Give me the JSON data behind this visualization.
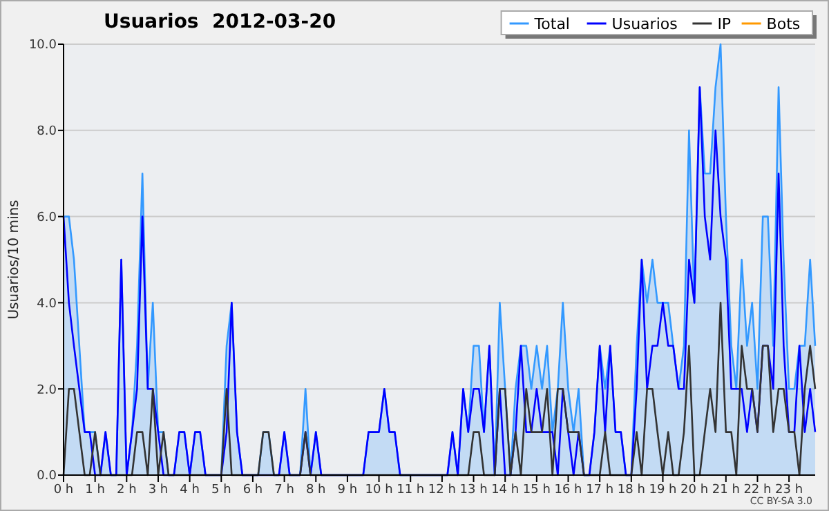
{
  "chart_data": {
    "type": "line",
    "title": "Usuarios  2012-03-20",
    "ylabel": "Usuarios/10 mins",
    "annotations": [
      "CC BY-SA 3.0"
    ],
    "x": [
      0,
      0.17,
      0.33,
      0.5,
      0.67,
      0.83,
      1,
      1.17,
      1.33,
      1.5,
      1.67,
      1.83,
      2,
      2.17,
      2.33,
      2.5,
      2.67,
      2.83,
      3,
      3.17,
      3.33,
      3.5,
      3.67,
      3.83,
      4,
      4.17,
      4.33,
      4.5,
      4.67,
      4.83,
      5,
      5.17,
      5.33,
      5.5,
      5.67,
      5.83,
      6,
      6.17,
      6.33,
      6.5,
      6.67,
      6.83,
      7,
      7.17,
      7.33,
      7.5,
      7.67,
      7.83,
      8,
      8.17,
      8.33,
      8.5,
      8.67,
      8.83,
      9,
      9.17,
      9.33,
      9.5,
      9.67,
      9.83,
      10,
      10.17,
      10.33,
      10.5,
      10.67,
      10.83,
      11,
      11.17,
      11.33,
      11.5,
      11.67,
      11.83,
      12,
      12.17,
      12.33,
      12.5,
      12.67,
      12.83,
      13,
      13.17,
      13.33,
      13.5,
      13.67,
      13.83,
      14,
      14.17,
      14.33,
      14.5,
      14.67,
      14.83,
      15,
      15.17,
      15.33,
      15.5,
      15.67,
      15.83,
      16,
      16.17,
      16.33,
      16.5,
      16.67,
      16.83,
      17,
      17.17,
      17.33,
      17.5,
      17.67,
      17.83,
      18,
      18.17,
      18.33,
      18.5,
      18.67,
      18.83,
      19,
      19.17,
      19.33,
      19.5,
      19.67,
      19.83,
      20,
      20.17,
      20.33,
      20.5,
      20.67,
      20.83,
      21,
      21.17,
      21.33,
      21.5,
      21.67,
      21.83,
      22,
      22.17,
      22.33,
      22.5,
      22.67,
      22.83,
      23,
      23.17,
      23.33,
      23.5,
      23.67,
      23.83
    ],
    "series": [
      {
        "name": "Total",
        "type": "area",
        "color": "#3399ff",
        "values": [
          6,
          6,
          5,
          3,
          1,
          1,
          1,
          0,
          1,
          0,
          0,
          5,
          0,
          1,
          3,
          7,
          2,
          4,
          1,
          1,
          0,
          0,
          1,
          1,
          0,
          1,
          1,
          0,
          0,
          0,
          0,
          3,
          4,
          1,
          0,
          0,
          0,
          0,
          1,
          1,
          0,
          0,
          1,
          0,
          0,
          0,
          2,
          0,
          1,
          0,
          0,
          0,
          0,
          0,
          0,
          0,
          0,
          0,
          1,
          1,
          1,
          2,
          1,
          1,
          0,
          0,
          0,
          0,
          0,
          0,
          0,
          0,
          0,
          0,
          1,
          0,
          2,
          1,
          3,
          3,
          1,
          3,
          0,
          4,
          2,
          0,
          2,
          3,
          3,
          2,
          3,
          2,
          3,
          1,
          2,
          4,
          2,
          1,
          2,
          0,
          0,
          1,
          3,
          2,
          3,
          1,
          1,
          0,
          0,
          3,
          5,
          4,
          5,
          4,
          4,
          4,
          3,
          2,
          3,
          8,
          4,
          9,
          7,
          7,
          9,
          10,
          6,
          3,
          2,
          5,
          3,
          4,
          2,
          6,
          6,
          3,
          9,
          5,
          2,
          2,
          3,
          3,
          5,
          3
        ]
      },
      {
        "name": "Usuarios",
        "color": "#0000ff",
        "values": [
          6,
          4,
          3,
          2,
          1,
          1,
          0,
          0,
          1,
          0,
          0,
          5,
          0,
          1,
          2,
          6,
          2,
          2,
          1,
          0,
          0,
          0,
          1,
          1,
          0,
          1,
          1,
          0,
          0,
          0,
          0,
          1,
          4,
          1,
          0,
          0,
          0,
          0,
          0,
          0,
          0,
          0,
          1,
          0,
          0,
          0,
          1,
          0,
          1,
          0,
          0,
          0,
          0,
          0,
          0,
          0,
          0,
          0,
          1,
          1,
          1,
          2,
          1,
          1,
          0,
          0,
          0,
          0,
          0,
          0,
          0,
          0,
          0,
          0,
          1,
          0,
          2,
          1,
          2,
          2,
          1,
          3,
          0,
          2,
          0,
          0,
          1,
          3,
          1,
          1,
          2,
          1,
          1,
          1,
          0,
          2,
          1,
          0,
          1,
          0,
          0,
          1,
          3,
          1,
          3,
          1,
          1,
          0,
          0,
          2,
          5,
          2,
          3,
          3,
          4,
          3,
          3,
          2,
          2,
          5,
          4,
          9,
          6,
          5,
          8,
          6,
          5,
          2,
          2,
          2,
          1,
          2,
          1,
          3,
          3,
          2,
          7,
          3,
          1,
          1,
          3,
          1,
          2,
          1
        ]
      },
      {
        "name": "IP",
        "color": "#333333",
        "values": [
          0,
          2,
          2,
          1,
          0,
          0,
          1,
          0,
          0,
          0,
          0,
          0,
          0,
          0,
          1,
          1,
          0,
          2,
          0,
          1,
          0,
          0,
          0,
          0,
          0,
          0,
          0,
          0,
          0,
          0,
          0,
          2,
          0,
          0,
          0,
          0,
          0,
          0,
          1,
          1,
          0,
          0,
          0,
          0,
          0,
          0,
          1,
          0,
          0,
          0,
          0,
          0,
          0,
          0,
          0,
          0,
          0,
          0,
          0,
          0,
          0,
          0,
          0,
          0,
          0,
          0,
          0,
          0,
          0,
          0,
          0,
          0,
          0,
          0,
          0,
          0,
          0,
          0,
          1,
          1,
          0,
          0,
          0,
          2,
          2,
          0,
          1,
          0,
          2,
          1,
          1,
          1,
          2,
          0,
          2,
          2,
          1,
          1,
          1,
          0,
          0,
          0,
          0,
          1,
          0,
          0,
          0,
          0,
          0,
          1,
          0,
          2,
          2,
          1,
          0,
          1,
          0,
          0,
          1,
          3,
          0,
          0,
          1,
          2,
          1,
          4,
          1,
          1,
          0,
          3,
          2,
          2,
          1,
          3,
          3,
          1,
          2,
          2,
          1,
          1,
          0,
          2,
          3,
          2
        ]
      },
      {
        "name": "Bots",
        "color": "#ff9900",
        "values": [
          null,
          null,
          null,
          null,
          null,
          null,
          null,
          null,
          null,
          null,
          null,
          null,
          null,
          null,
          null,
          null,
          null,
          null,
          null,
          null,
          null,
          null,
          null,
          null,
          null,
          null,
          null,
          null,
          null,
          null,
          null,
          null,
          null,
          null,
          null,
          null,
          null,
          null,
          null,
          null,
          null,
          null,
          null,
          null,
          null,
          null,
          null,
          null,
          null,
          null,
          null,
          null,
          null,
          null,
          null,
          null,
          null,
          null,
          null,
          null,
          null,
          null,
          null,
          null,
          null,
          null,
          null,
          null,
          null,
          null,
          null,
          null,
          null,
          null,
          null,
          null,
          null,
          null,
          null,
          null,
          null,
          null,
          null,
          null,
          null,
          null,
          null,
          null,
          null,
          null,
          null,
          null,
          null,
          null,
          null,
          null,
          null,
          null,
          null,
          null,
          null,
          null,
          null,
          null,
          null,
          null,
          null,
          null,
          null,
          null,
          null,
          null,
          null,
          null,
          null,
          null,
          null,
          null,
          null,
          null,
          null,
          null,
          null,
          null,
          null,
          null,
          null,
          null,
          null,
          null,
          null,
          null,
          null,
          null,
          null,
          null,
          null,
          null,
          null,
          null,
          null,
          null,
          null,
          null
        ]
      }
    ],
    "xlim": [
      0,
      23.83
    ],
    "xticks": [
      {
        "value": 0,
        "label": "0 h"
      },
      {
        "value": 1,
        "label": "1 h"
      },
      {
        "value": 2,
        "label": "2 h"
      },
      {
        "value": 3,
        "label": "3 h"
      },
      {
        "value": 4,
        "label": "4 h"
      },
      {
        "value": 5,
        "label": "5 h"
      },
      {
        "value": 6,
        "label": "6 h"
      },
      {
        "value": 7,
        "label": "7 h"
      },
      {
        "value": 8,
        "label": "8 h"
      },
      {
        "value": 9,
        "label": "9 h"
      },
      {
        "value": 10,
        "label": "10 h"
      },
      {
        "value": 11,
        "label": "11 h"
      },
      {
        "value": 12,
        "label": "12 h"
      },
      {
        "value": 13,
        "label": "13 h"
      },
      {
        "value": 14,
        "label": "14 h"
      },
      {
        "value": 15,
        "label": "15 h"
      },
      {
        "value": 16,
        "label": "16 h"
      },
      {
        "value": 17,
        "label": "17 h"
      },
      {
        "value": 18,
        "label": "18 h"
      },
      {
        "value": 19,
        "label": "19 h"
      },
      {
        "value": 20,
        "label": "20 h"
      },
      {
        "value": 21,
        "label": "21 h"
      },
      {
        "value": 22,
        "label": "22 h"
      },
      {
        "value": 23,
        "label": "23 h"
      }
    ],
    "ylim": [
      0,
      10
    ],
    "yticks": [
      {
        "value": 0,
        "label": "0.0"
      },
      {
        "value": 2,
        "label": "2.0"
      },
      {
        "value": 4,
        "label": "4.0"
      },
      {
        "value": 6,
        "label": "6.0"
      },
      {
        "value": 8,
        "label": "8.0"
      },
      {
        "value": 10,
        "label": "10.0"
      }
    ],
    "grid": "y",
    "legend": "top right",
    "marker": "none",
    "line_style": "solid"
  }
}
